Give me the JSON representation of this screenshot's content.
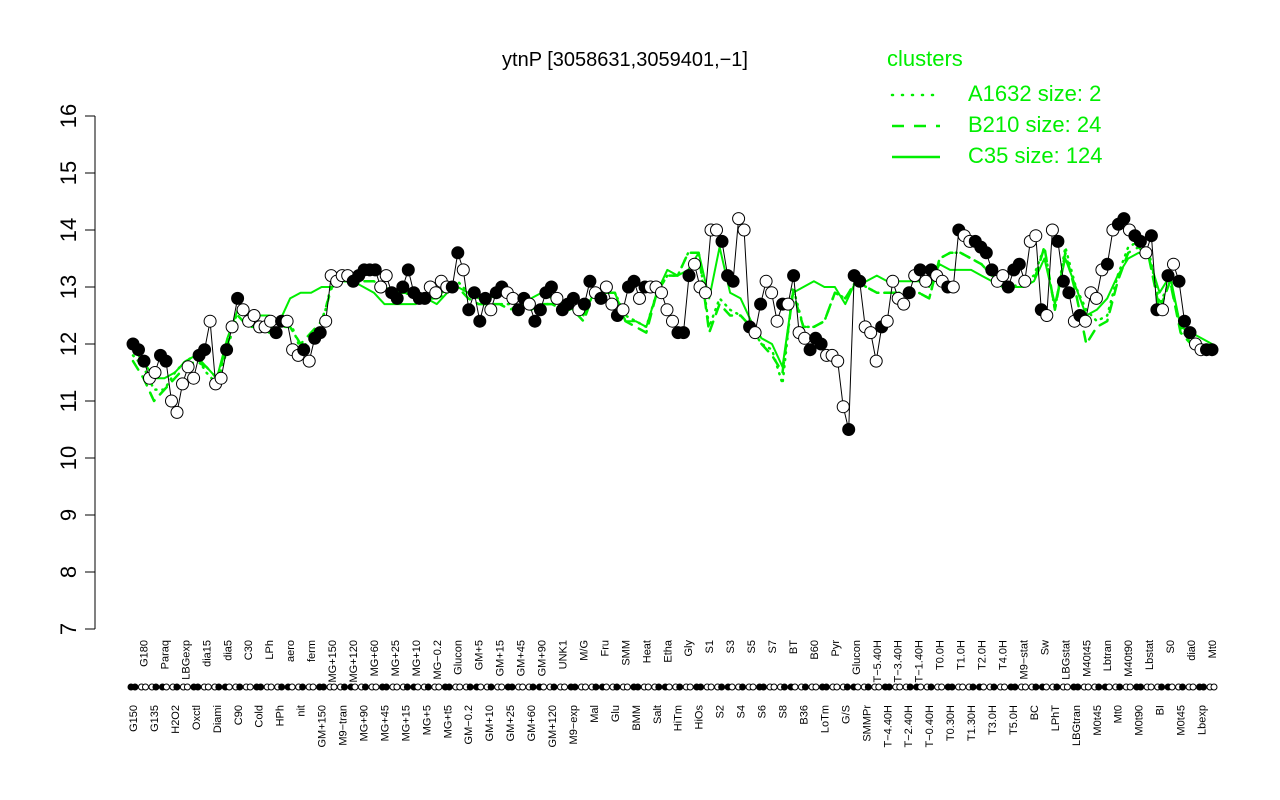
{
  "chart_data": {
    "type": "line",
    "title": "ytnP [3058631,3059401,−1]",
    "ylim": [
      7,
      16
    ],
    "y_ticks": [
      "7",
      "8",
      "9",
      "10",
      "11",
      "12",
      "13",
      "14",
      "15",
      "16"
    ],
    "x_tick_labels": [
      "G150",
      "G180",
      "G135",
      "Paraq",
      "H2O2",
      "LBGexp",
      "Oxctl",
      "dia15",
      "Diami",
      "dia5",
      "C90",
      "C30",
      "Cold",
      "LPh",
      "HPh",
      "aero",
      "nit",
      "ferm",
      "GM+150",
      "MG+150",
      "M9−tran",
      "MG+120",
      "MG+90",
      "MG+60",
      "MG+45",
      "MG+25",
      "MG+15",
      "MG+10",
      "MG+5",
      "MG−0.2",
      "MG+t5",
      "Glucon",
      "GM−0.2",
      "GM+5",
      "GM+10",
      "GM+15",
      "GM+25",
      "GM+45",
      "GM+60",
      "GM+90",
      "GM+120",
      "UNK1",
      "M9−exp",
      "M/G",
      "Mal",
      "Fru",
      "Glu",
      "SMM",
      "BMM",
      "Heat",
      "Salt",
      "Etha",
      "HiTm",
      "Gly",
      "HiOs",
      "S1",
      "S2",
      "S3",
      "S4",
      "S5",
      "S6",
      "S7",
      "S8",
      "BT",
      "B36",
      "B60",
      "LoTm",
      "Pyr",
      "G/S",
      "Glucon",
      "SMMPr",
      "T−5.40H",
      "T−4.40H",
      "T−3.40H",
      "T−2.40H",
      "T−1.40H",
      "T−0.40H",
      "T0.0H",
      "T0.30H",
      "T1.0H",
      "T1.30H",
      "T2.0H",
      "T3.0H",
      "T4.0H",
      "T5.0H",
      "M9−stat",
      "BC",
      "Sw",
      "LPhT",
      "LBGstat",
      "LBGtran",
      "M40t45",
      "M0t45",
      "Lbtran",
      "Mt0",
      "M40t90",
      "M0t90",
      "Lbstat",
      "BI",
      "S0",
      "M0t45",
      "dia0",
      "Lbexp",
      "Mt0"
    ],
    "series": [
      {
        "name": "A1632 size: 2",
        "style": "dotted",
        "values": [
          11.8,
          11.6,
          11.2,
          11.2,
          11.5,
          11.7,
          11.8,
          11.5,
          11.3,
          11.9,
          12.6,
          12.4,
          12.4,
          12.3,
          12.3,
          12.4,
          11.9,
          12.1,
          12.3,
          13.1,
          13.1,
          13.1,
          13.1,
          13.1,
          13.0,
          12.9,
          12.9,
          12.8,
          12.8,
          12.8,
          13.0,
          13.1,
          12.9,
          12.8,
          12.7,
          12.7,
          12.7,
          12.7,
          12.6,
          12.7,
          12.7,
          12.6,
          12.6,
          12.5,
          12.9,
          12.9,
          12.9,
          12.5,
          12.4,
          12.3,
          12.9,
          13.2,
          13.2,
          13.6,
          13.6,
          12.3,
          12.8,
          12.6,
          12.5,
          12.3,
          12.0,
          11.9,
          11.3,
          13.0,
          12.3,
          12.3,
          12.4,
          12.9,
          12.8,
          13.1,
          13.0,
          12.9,
          12.9,
          12.9,
          12.9,
          12.9,
          12.8,
          13.5,
          13.6,
          13.6,
          13.5,
          13.4,
          13.2,
          13.1,
          13.0,
          13.1,
          13.2,
          13.7,
          12.6,
          13.7,
          13.0,
          12.6,
          12.4,
          12.5,
          13.2,
          13.7,
          13.8,
          13.6,
          12.7,
          13.1,
          12.3,
          12.0,
          11.9,
          11.9
        ]
      },
      {
        "name": "B210 size: 24",
        "style": "dashed",
        "values": [
          11.7,
          11.4,
          11.0,
          11.2,
          11.4,
          11.6,
          11.7,
          11.6,
          11.4,
          12.0,
          12.5,
          12.3,
          12.3,
          12.2,
          12.3,
          12.3,
          12.0,
          12.2,
          12.4,
          13.0,
          13.1,
          13.1,
          13.1,
          13.1,
          13.0,
          12.9,
          12.9,
          12.8,
          12.8,
          12.8,
          12.9,
          13.0,
          12.8,
          12.7,
          12.7,
          12.7,
          12.6,
          12.7,
          12.6,
          12.7,
          12.7,
          12.6,
          12.6,
          12.4,
          12.9,
          12.9,
          12.9,
          12.4,
          12.3,
          12.2,
          12.9,
          13.2,
          13.2,
          13.6,
          13.6,
          12.2,
          12.7,
          12.5,
          12.5,
          12.3,
          12.0,
          11.8,
          11.5,
          12.9,
          12.3,
          12.3,
          12.4,
          12.9,
          12.8,
          13.1,
          13.0,
          12.9,
          12.9,
          12.9,
          12.9,
          12.9,
          12.8,
          13.5,
          13.6,
          13.6,
          13.5,
          13.4,
          13.2,
          13.1,
          13.0,
          13.1,
          13.1,
          13.7,
          12.6,
          13.6,
          12.9,
          12.0,
          12.3,
          12.4,
          13.1,
          13.6,
          13.7,
          13.5,
          12.6,
          13.1,
          12.2,
          12.0,
          11.9,
          11.9
        ]
      },
      {
        "name": "C35 size: 124",
        "style": "solid",
        "values": [
          11.9,
          11.7,
          11.4,
          11.4,
          11.5,
          11.7,
          11.8,
          11.6,
          11.4,
          12.1,
          12.6,
          12.5,
          12.5,
          12.5,
          12.4,
          12.8,
          12.9,
          12.9,
          13.0,
          13.0,
          13.1,
          13.1,
          13.0,
          12.9,
          12.7,
          12.7,
          12.7,
          12.7,
          12.8,
          12.7,
          12.9,
          13.0,
          12.9,
          12.8,
          12.8,
          12.9,
          12.8,
          12.8,
          12.8,
          12.9,
          12.8,
          12.7,
          12.6,
          12.5,
          12.9,
          12.9,
          12.9,
          12.4,
          12.4,
          12.3,
          12.9,
          13.3,
          13.2,
          13.3,
          13.6,
          12.8,
          13.7,
          12.9,
          12.8,
          12.4,
          12.1,
          12.0,
          11.6,
          12.9,
          13.0,
          13.1,
          13.0,
          13.0,
          12.7,
          13.1,
          13.1,
          13.2,
          13.1,
          13.1,
          13.1,
          13.1,
          13.0,
          13.4,
          13.3,
          13.3,
          13.3,
          13.2,
          13.1,
          13.0,
          13.0,
          13.0,
          13.1,
          13.5,
          12.7,
          13.5,
          13.0,
          12.5,
          12.6,
          12.8,
          13.2,
          13.5,
          13.6,
          13.5,
          12.9,
          13.2,
          12.3,
          12.2,
          12.1,
          12.0
        ]
      }
    ],
    "points": [
      12.0,
      11.9,
      11.7,
      11.4,
      11.5,
      11.8,
      11.7,
      11.0,
      10.8,
      11.3,
      11.6,
      11.4,
      11.8,
      11.9,
      12.4,
      11.3,
      11.4,
      11.9,
      12.3,
      12.8,
      12.6,
      12.4,
      12.5,
      12.3,
      12.3,
      12.4,
      12.2,
      12.4,
      12.4,
      11.9,
      11.8,
      11.9,
      11.7,
      12.1,
      12.2,
      12.4,
      13.2,
      13.1,
      13.2,
      13.2,
      13.1,
      13.2,
      13.3,
      13.3,
      13.3,
      13.0,
      13.2,
      12.9,
      12.8,
      13.0,
      13.3,
      12.9,
      12.8,
      12.8,
      13.0,
      12.9,
      13.1,
      13.0,
      13.0,
      13.6,
      13.3,
      12.6,
      12.9,
      12.4,
      12.8,
      12.6,
      12.9,
      13.0,
      12.9,
      12.8,
      12.6,
      12.8,
      12.7,
      12.4,
      12.6,
      12.9,
      13.0,
      12.8,
      12.6,
      12.7,
      12.8,
      12.6,
      12.7,
      13.1,
      12.9,
      12.8,
      13.0,
      12.7,
      12.5,
      12.6,
      13.0,
      13.1,
      12.8,
      13.0,
      13.0,
      13.0,
      12.9,
      12.6,
      12.4,
      12.2,
      12.2,
      13.2,
      13.4,
      13.0,
      12.9,
      14.0,
      14.0,
      13.8,
      13.2,
      13.1,
      14.2,
      14.0,
      12.3,
      12.2,
      12.7,
      13.1,
      12.9,
      12.4,
      12.7,
      12.7,
      13.2,
      12.2,
      12.1,
      11.9,
      12.1,
      12.0,
      11.8,
      11.8,
      11.7,
      10.9,
      10.5,
      13.2,
      13.1,
      12.3,
      12.2,
      11.7,
      12.3,
      12.4,
      13.1,
      12.8,
      12.7,
      12.9,
      13.2,
      13.3,
      13.1,
      13.3,
      13.2,
      13.1,
      13.0,
      13.0,
      14.0,
      13.9,
      13.8,
      13.8,
      13.7,
      13.6,
      13.3,
      13.1,
      13.2,
      13.0,
      13.3,
      13.4,
      13.1,
      13.8,
      13.9,
      12.6,
      12.5,
      14.0,
      13.8,
      13.1,
      12.9,
      12.4,
      12.5,
      12.4,
      12.9,
      12.8,
      13.3,
      13.4,
      14.0,
      14.1,
      14.2,
      14.0,
      13.9,
      13.8,
      13.6,
      13.9,
      12.6,
      12.6,
      13.2,
      13.4,
      13.1,
      12.4,
      12.2,
      12.0,
      11.9,
      11.9,
      11.9
    ],
    "point_fills": [
      1,
      1,
      1,
      0,
      0,
      1,
      1,
      0,
      0,
      0,
      0,
      0,
      1,
      1,
      0,
      0,
      0,
      1,
      0,
      1,
      0,
      0,
      0,
      0,
      0,
      0,
      1,
      1,
      0,
      0,
      0,
      1,
      0,
      1,
      1,
      0,
      0,
      0,
      0,
      0,
      1,
      1,
      1,
      1,
      1,
      0,
      0,
      1,
      1,
      1,
      1,
      1,
      1,
      1,
      0,
      0,
      0,
      0,
      1,
      1,
      0,
      1,
      1,
      1,
      1,
      0,
      1,
      1,
      0,
      0,
      1,
      1,
      0,
      1,
      1,
      1,
      1,
      0,
      1,
      1,
      1,
      0,
      1,
      1,
      0,
      1,
      0,
      0,
      1,
      0,
      1,
      1,
      0,
      1,
      0,
      0,
      0,
      0,
      0,
      1,
      1,
      1,
      0,
      0,
      0,
      0,
      0,
      1,
      1,
      1,
      0,
      0,
      1,
      0,
      1,
      0,
      0,
      0,
      1,
      0,
      1,
      0,
      0,
      1,
      1,
      1,
      0,
      0,
      0,
      0,
      1,
      1,
      1,
      0,
      0,
      0,
      1,
      0,
      0,
      0,
      0,
      1,
      0,
      1,
      0,
      1,
      0,
      0,
      1,
      0,
      1,
      0,
      0,
      1,
      1,
      1,
      1,
      0,
      0,
      1,
      1,
      1,
      0,
      0,
      0,
      1,
      0,
      0,
      1,
      1,
      1,
      0,
      1,
      0,
      0,
      0,
      0,
      1,
      0,
      1,
      1,
      0,
      1,
      1,
      0,
      1,
      1,
      0,
      1,
      0,
      1,
      1,
      1,
      0,
      0,
      1,
      1
    ],
    "legend": {
      "title": "clusters",
      "placement": "top-right"
    },
    "colors": {
      "line": "#00ee00",
      "legend_text": "#00ee00",
      "axis": "#000000",
      "point_stroke": "#000000"
    },
    "grid": false
  }
}
